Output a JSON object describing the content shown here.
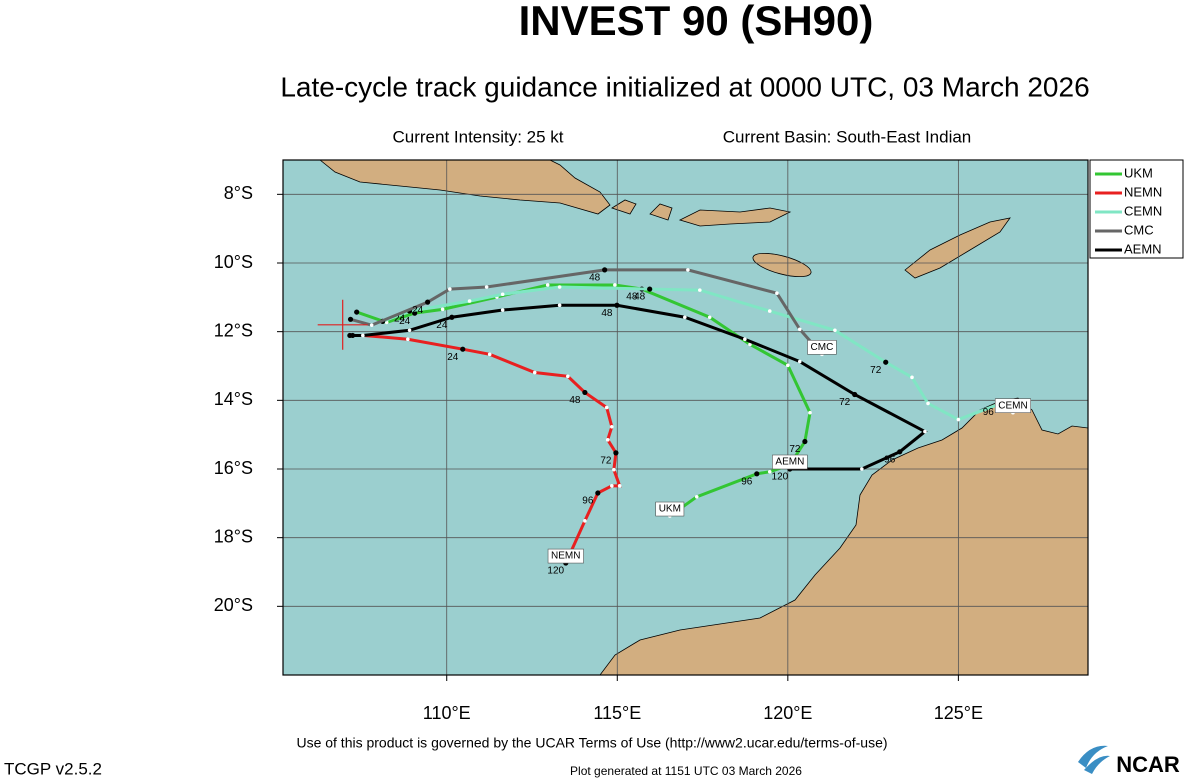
{
  "chart_data": {
    "type": "track-map",
    "title": "INVEST 90 (SH90)",
    "subtitle": "Late-cycle track guidance initialized at 0000 UTC, 03 March 2026",
    "intensity": "Current Intensity: 25 kt",
    "basin": "Current Basin: South-East Indian",
    "xlim": [
      105.2,
      128.8
    ],
    "ylim": [
      -22,
      -7
    ],
    "xticks": [
      {
        "value": 110,
        "label": "110°E"
      },
      {
        "value": 115,
        "label": "115°E"
      },
      {
        "value": 120,
        "label": "120°E"
      },
      {
        "value": 125,
        "label": "125°E"
      }
    ],
    "yticks": [
      {
        "value": -8,
        "label": "8°S"
      },
      {
        "value": -10,
        "label": "10°S"
      },
      {
        "value": -12,
        "label": "12°S"
      },
      {
        "value": -14,
        "label": "14°S"
      },
      {
        "value": -16,
        "label": "16°S"
      },
      {
        "value": -18,
        "label": "18°S"
      },
      {
        "value": -20,
        "label": "20°S"
      }
    ],
    "grid": true,
    "initial_position": [
      106.95,
      -11.8
    ],
    "series": [
      {
        "name": "UKM",
        "color": "#33c633",
        "x": [
          107.36,
          108.24,
          109.06,
          109.88,
          111.47,
          112.96,
          114.93,
          115.72,
          117.71,
          118.89,
          120.0,
          120.65,
          120.5,
          120.06,
          119.47,
          119.09,
          117.33,
          116.54
        ],
        "y": [
          -11.43,
          -11.73,
          -11.46,
          -11.35,
          -10.99,
          -10.64,
          -10.64,
          -10.76,
          -11.58,
          -12.37,
          -12.98,
          -14.36,
          -15.2,
          -15.88,
          -16.08,
          -16.14,
          -16.81,
          -17.37
        ],
        "labels": [
          null,
          null,
          24,
          null,
          null,
          null,
          null,
          48,
          null,
          null,
          null,
          null,
          72,
          null,
          null,
          96,
          null,
          null
        ]
      },
      {
        "name": "NEMN",
        "color": "#e82020",
        "x": [
          107.24,
          107.57,
          108.86,
          110.47,
          111.26,
          112.58,
          113.55,
          114.05,
          114.69,
          114.84,
          114.72,
          114.96,
          114.9,
          115.07,
          114.84,
          114.43,
          114.05,
          113.49
        ],
        "y": [
          -12.11,
          -12.11,
          -12.22,
          -12.51,
          -12.66,
          -13.19,
          -13.3,
          -13.77,
          -14.21,
          -14.77,
          -15.15,
          -15.53,
          -16.02,
          -16.49,
          -16.49,
          -16.7,
          -17.51,
          -18.74
        ],
        "labels": [
          null,
          null,
          null,
          24,
          null,
          null,
          null,
          48,
          null,
          null,
          null,
          72,
          null,
          null,
          null,
          96,
          null,
          120
        ]
      },
      {
        "name": "CEMN",
        "color": "#80e6c4",
        "x": [
          108.12,
          108.91,
          110.67,
          111.64,
          113.31,
          115.95,
          117.42,
          119.47,
          121.38,
          122.87,
          123.64,
          124.11,
          125.0,
          126.17,
          126.6
        ],
        "y": [
          -11.7,
          -11.4,
          -11.11,
          -10.91,
          -10.7,
          -10.76,
          -10.79,
          -11.4,
          -11.96,
          -12.89,
          -13.33,
          -14.09,
          -14.56,
          -14.12,
          -14.36
        ],
        "labels": [
          null,
          24,
          null,
          null,
          null,
          48,
          null,
          null,
          null,
          72,
          null,
          null,
          null,
          96,
          null
        ]
      },
      {
        "name": "CMC",
        "color": "#666666",
        "x": [
          107.18,
          107.8,
          109.44,
          110.09,
          111.17,
          114.63,
          117.07,
          119.68,
          120.35,
          121.0
        ],
        "y": [
          -11.64,
          -11.81,
          -11.14,
          -10.76,
          -10.7,
          -10.2,
          -10.2,
          -10.88,
          -11.93,
          -12.66
        ],
        "labels": [
          null,
          null,
          24,
          null,
          null,
          48,
          null,
          null,
          null,
          null
        ]
      },
      {
        "name": "AEMN",
        "color": "#000000",
        "x": [
          107.16,
          107.54,
          108.91,
          110.15,
          111.64,
          113.31,
          114.99,
          116.98,
          118.74,
          120.35,
          121.96,
          124.02,
          123.28,
          122.17,
          120.06
        ],
        "y": [
          -12.11,
          -12.11,
          -11.96,
          -11.58,
          -11.37,
          -11.23,
          -11.23,
          -11.58,
          -12.22,
          -12.87,
          -13.83,
          -14.91,
          -15.5,
          -16.0,
          -16.0
        ],
        "labels": [
          null,
          null,
          null,
          24,
          null,
          null,
          48,
          null,
          null,
          null,
          72,
          null,
          96,
          null,
          120
        ]
      }
    ],
    "legend": "upper-right",
    "footer": "Use of this product is governed by the UCAR Terms of Use (http://www2.ucar.edu/terms-of-use)",
    "version": "TCGP v2.5.2",
    "generated": "Plot generated at 1151 UTC  03 March 2026",
    "logo": "NCAR"
  }
}
